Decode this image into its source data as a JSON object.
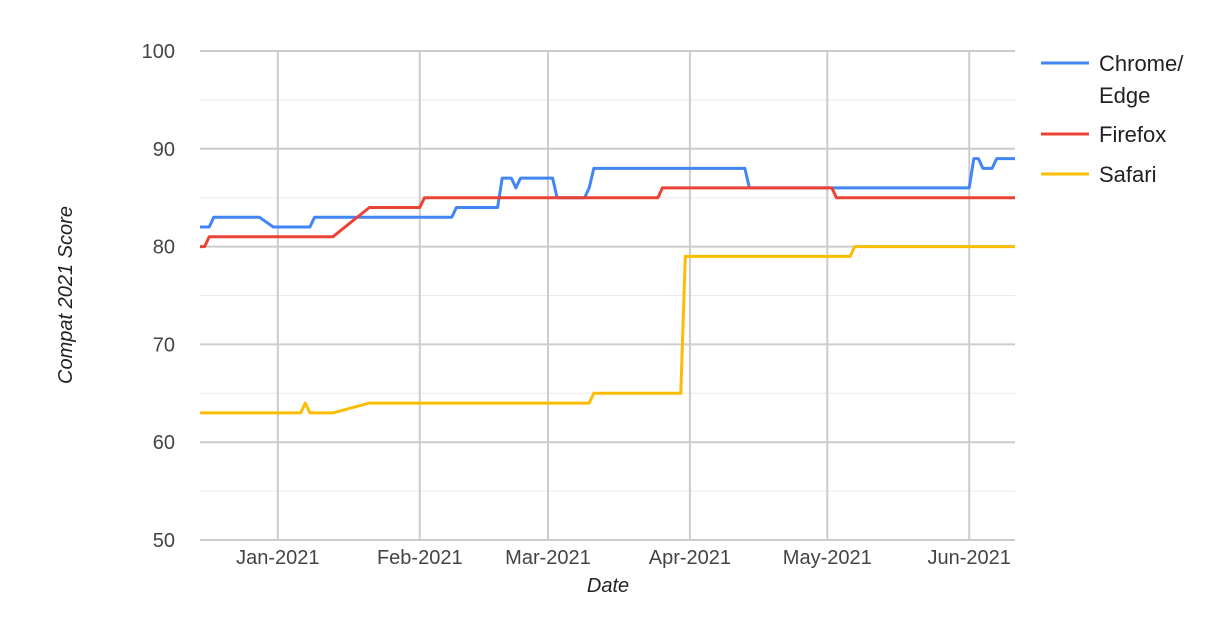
{
  "chart_data": {
    "type": "line",
    "title": "",
    "xlabel": "Date",
    "ylabel": "Compat 2021 Score",
    "xlim": [
      "2020-12-15",
      "2021-06-11"
    ],
    "ylim": [
      50,
      100
    ],
    "yticks": [
      50,
      60,
      70,
      80,
      90,
      100
    ],
    "xticks": [
      {
        "date": "2021-01-01",
        "label": "Jan-2021"
      },
      {
        "date": "2021-02-01",
        "label": "Feb-2021"
      },
      {
        "date": "2021-03-01",
        "label": "Mar-2021"
      },
      {
        "date": "2021-04-01",
        "label": "Apr-2021"
      },
      {
        "date": "2021-05-01",
        "label": "May-2021"
      },
      {
        "date": "2021-06-01",
        "label": "Jun-2021"
      }
    ],
    "grid": true,
    "legend": "right",
    "series": [
      {
        "name": "Chrome/ Edge",
        "legend_lines": [
          "Chrome/",
          "Edge"
        ],
        "color": "#4285f4",
        "points": [
          [
            "2020-12-15",
            82
          ],
          [
            "2020-12-17",
            82
          ],
          [
            "2020-12-18",
            83
          ],
          [
            "2020-12-28",
            83
          ],
          [
            "2020-12-31",
            82
          ],
          [
            "2021-01-08",
            82
          ],
          [
            "2021-01-09",
            83
          ],
          [
            "2021-02-08",
            83
          ],
          [
            "2021-02-09",
            84
          ],
          [
            "2021-02-18",
            84
          ],
          [
            "2021-02-19",
            87
          ],
          [
            "2021-02-21",
            87
          ],
          [
            "2021-02-22",
            86
          ],
          [
            "2021-02-23",
            87
          ],
          [
            "2021-03-02",
            87
          ],
          [
            "2021-03-03",
            85
          ],
          [
            "2021-03-09",
            85
          ],
          [
            "2021-03-10",
            86
          ],
          [
            "2021-03-11",
            88
          ],
          [
            "2021-04-13",
            88
          ],
          [
            "2021-04-14",
            86
          ],
          [
            "2021-06-01",
            86
          ],
          [
            "2021-06-02",
            89
          ],
          [
            "2021-06-03",
            89
          ],
          [
            "2021-06-04",
            88
          ],
          [
            "2021-06-06",
            88
          ],
          [
            "2021-06-07",
            89
          ],
          [
            "2021-06-11",
            89
          ]
        ]
      },
      {
        "name": "Firefox",
        "legend_lines": [
          "Firefox"
        ],
        "color": "#ea4335",
        "points": [
          [
            "2020-12-15",
            80
          ],
          [
            "2020-12-16",
            80
          ],
          [
            "2020-12-17",
            81
          ],
          [
            "2021-01-13",
            81
          ],
          [
            "2021-01-21",
            84
          ],
          [
            "2021-02-01",
            84
          ],
          [
            "2021-02-02",
            85
          ],
          [
            "2021-03-25",
            85
          ],
          [
            "2021-03-26",
            86
          ],
          [
            "2021-05-02",
            86
          ],
          [
            "2021-05-03",
            85
          ],
          [
            "2021-06-11",
            85
          ]
        ]
      },
      {
        "name": "Safari",
        "legend_lines": [
          "Safari"
        ],
        "color": "#fbbc04",
        "points": [
          [
            "2020-12-15",
            63
          ],
          [
            "2021-01-06",
            63
          ],
          [
            "2021-01-07",
            64
          ],
          [
            "2021-01-08",
            63
          ],
          [
            "2021-01-13",
            63
          ],
          [
            "2021-01-21",
            64
          ],
          [
            "2021-03-10",
            64
          ],
          [
            "2021-03-11",
            65
          ],
          [
            "2021-03-30",
            65
          ],
          [
            "2021-03-31",
            79
          ],
          [
            "2021-05-06",
            79
          ],
          [
            "2021-05-07",
            80
          ],
          [
            "2021-06-11",
            80
          ]
        ]
      }
    ]
  }
}
